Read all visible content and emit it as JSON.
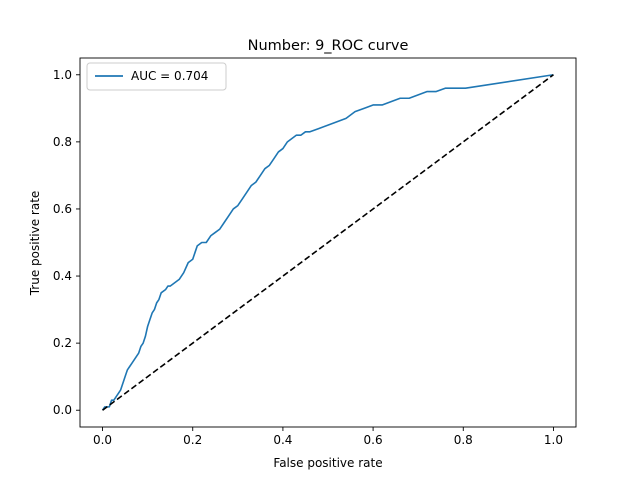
{
  "chart_data": {
    "type": "line",
    "title": "Number: 9_ROC curve",
    "xlabel": "False positive rate",
    "ylabel": "True positive rate",
    "xlim": [
      -0.05,
      1.05
    ],
    "ylim": [
      -0.05,
      1.05
    ],
    "xticks": [
      "0.0",
      "0.2",
      "0.4",
      "0.6",
      "0.8",
      "1.0"
    ],
    "yticks": [
      "0.0",
      "0.2",
      "0.4",
      "0.6",
      "0.8",
      "1.0"
    ],
    "grid": false,
    "legend": {
      "location": "upper left",
      "entries": [
        "AUC = 0.704"
      ]
    },
    "colors": {
      "roc": "#1f77b4",
      "diagonal": "#000000"
    },
    "series": [
      {
        "name": "AUC = 0.704",
        "style": "solid",
        "x": [
          0.0,
          0.005,
          0.01,
          0.015,
          0.02,
          0.025,
          0.03,
          0.035,
          0.04,
          0.045,
          0.05,
          0.055,
          0.06,
          0.065,
          0.07,
          0.075,
          0.08,
          0.085,
          0.09,
          0.095,
          0.1,
          0.105,
          0.11,
          0.115,
          0.12,
          0.125,
          0.13,
          0.14,
          0.145,
          0.15,
          0.16,
          0.17,
          0.175,
          0.18,
          0.19,
          0.2,
          0.205,
          0.21,
          0.22,
          0.23,
          0.24,
          0.25,
          0.26,
          0.27,
          0.28,
          0.29,
          0.3,
          0.31,
          0.315,
          0.32,
          0.33,
          0.34,
          0.35,
          0.36,
          0.37,
          0.38,
          0.39,
          0.4,
          0.41,
          0.42,
          0.43,
          0.44,
          0.45,
          0.46,
          0.48,
          0.5,
          0.52,
          0.54,
          0.55,
          0.56,
          0.58,
          0.6,
          0.62,
          0.64,
          0.66,
          0.68,
          0.7,
          0.72,
          0.74,
          0.76,
          0.78,
          0.8,
          0.805,
          1.0
        ],
        "y": [
          0.0,
          0.01,
          0.01,
          0.01,
          0.03,
          0.03,
          0.04,
          0.05,
          0.06,
          0.08,
          0.1,
          0.12,
          0.13,
          0.14,
          0.15,
          0.16,
          0.17,
          0.19,
          0.2,
          0.22,
          0.25,
          0.27,
          0.29,
          0.3,
          0.32,
          0.33,
          0.35,
          0.36,
          0.37,
          0.37,
          0.38,
          0.39,
          0.4,
          0.41,
          0.44,
          0.45,
          0.47,
          0.49,
          0.5,
          0.5,
          0.52,
          0.53,
          0.54,
          0.56,
          0.58,
          0.6,
          0.61,
          0.63,
          0.64,
          0.65,
          0.67,
          0.68,
          0.7,
          0.72,
          0.73,
          0.75,
          0.77,
          0.78,
          0.8,
          0.81,
          0.82,
          0.82,
          0.83,
          0.83,
          0.84,
          0.85,
          0.86,
          0.87,
          0.88,
          0.89,
          0.9,
          0.91,
          0.91,
          0.92,
          0.93,
          0.93,
          0.94,
          0.95,
          0.95,
          0.96,
          0.96,
          0.96,
          0.96,
          1.0
        ]
      },
      {
        "name": "",
        "style": "dashed",
        "x": [
          0.0,
          1.0
        ],
        "y": [
          0.0,
          1.0
        ]
      }
    ]
  }
}
